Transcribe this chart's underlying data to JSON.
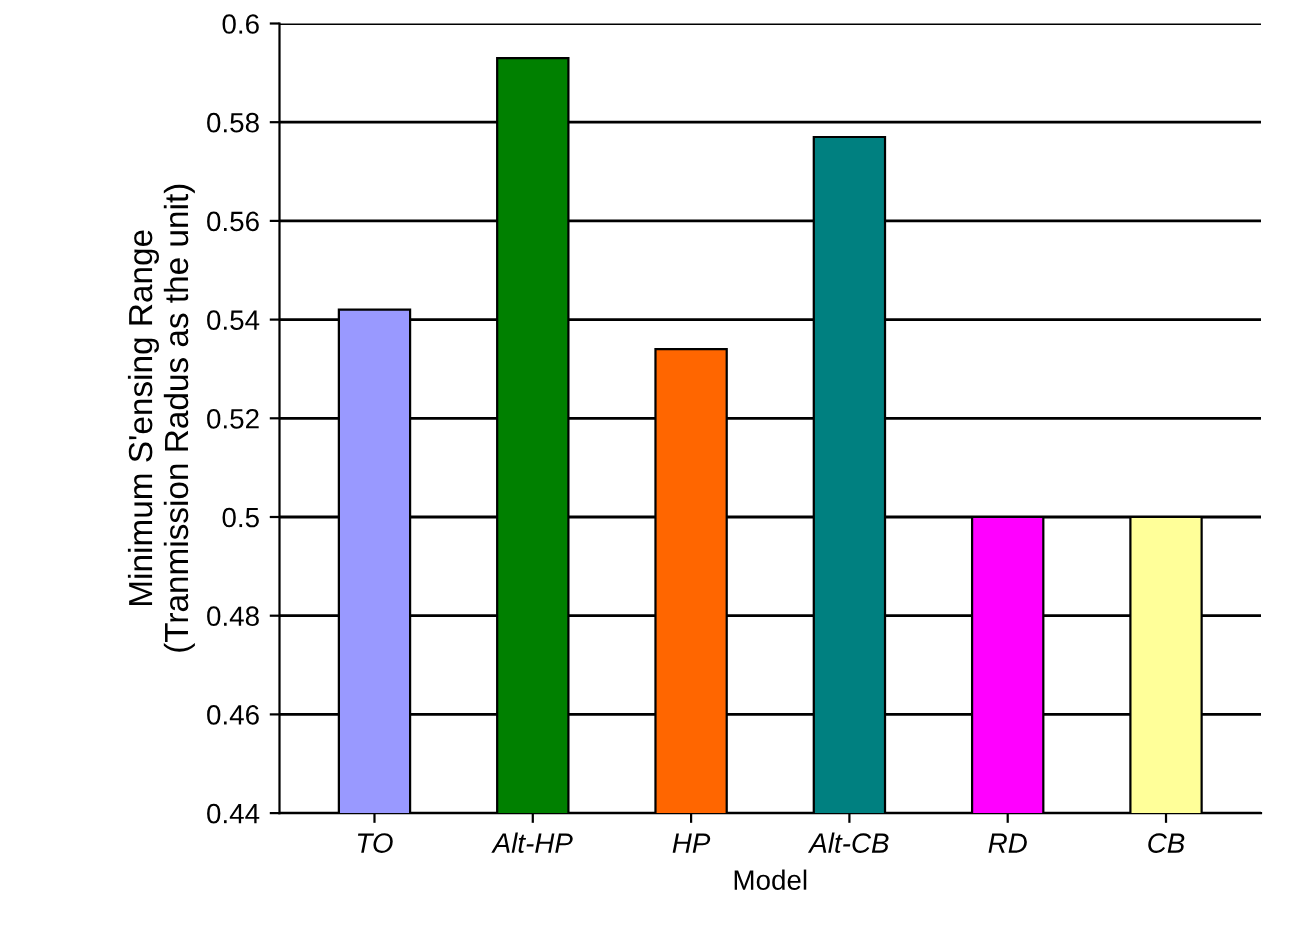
{
  "chart_data": {
    "type": "bar",
    "xlabel": "Model",
    "ylabel": "Minimum S'ensing Range\n(Tranmission Radus as the unit)",
    "categories": [
      "TO",
      "Alt-HP",
      "HP",
      "Alt-CB",
      "RD",
      "CB"
    ],
    "values": [
      0.542,
      0.593,
      0.534,
      0.577,
      0.5,
      0.5
    ],
    "colors": [
      "#9999ff",
      "#008000",
      "#ff6600",
      "#008080",
      "#ff00ff",
      "#ffff99"
    ],
    "ylim": [
      0.44,
      0.6
    ],
    "yticks": [
      0.44,
      0.46,
      0.48,
      0.5,
      0.52,
      0.54,
      0.56,
      0.58,
      0.6
    ],
    "grid": "y"
  }
}
